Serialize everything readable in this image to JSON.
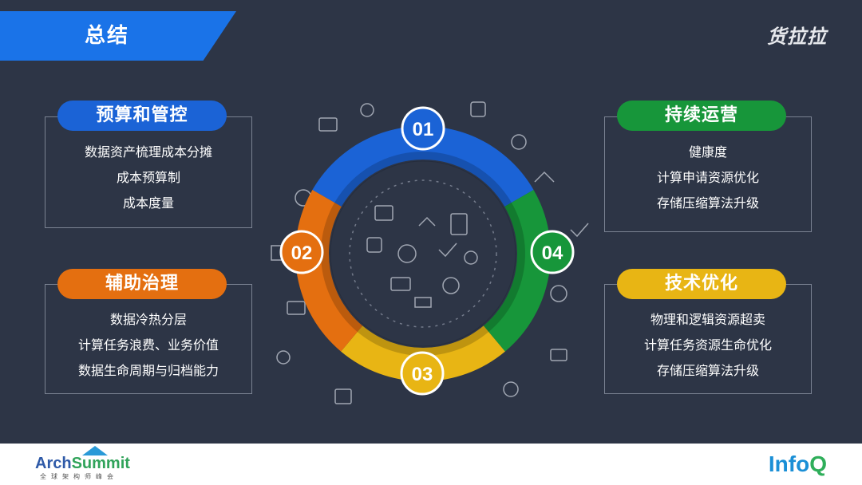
{
  "title": "总结",
  "brand": "货拉拉",
  "colors": {
    "background": "#2d3546",
    "blue": "#1b63d6",
    "green": "#17963a",
    "orange": "#e46f10",
    "yellow": "#e8b514",
    "title_bar": "#1a73e8"
  },
  "cards": {
    "budget": {
      "title": "预算和管控",
      "items": [
        "数据资产梳理成本分摊",
        "成本预算制",
        "成本度量"
      ]
    },
    "governance": {
      "title": "辅助治理",
      "items": [
        "数据冷热分层",
        "计算任务浪费、业务价值",
        "数据生命周期与归档能力"
      ]
    },
    "operation": {
      "title": "持续运营",
      "items": [
        "健康度",
        "计算申请资源优化",
        "存储压缩算法升级"
      ]
    },
    "tech": {
      "title": "技术优化",
      "items": [
        "物理和逻辑资源超卖",
        "计算任务资源生命优化",
        "存储压缩算法升级"
      ]
    }
  },
  "cycle": {
    "steps": [
      "01",
      "02",
      "03",
      "04"
    ]
  },
  "footer": {
    "left_logo": {
      "text_a": "Arch",
      "text_b": "Summit",
      "subtitle": "全球架构师峰会"
    },
    "right_logo": {
      "text_a": "Info",
      "text_b": "Q"
    }
  }
}
